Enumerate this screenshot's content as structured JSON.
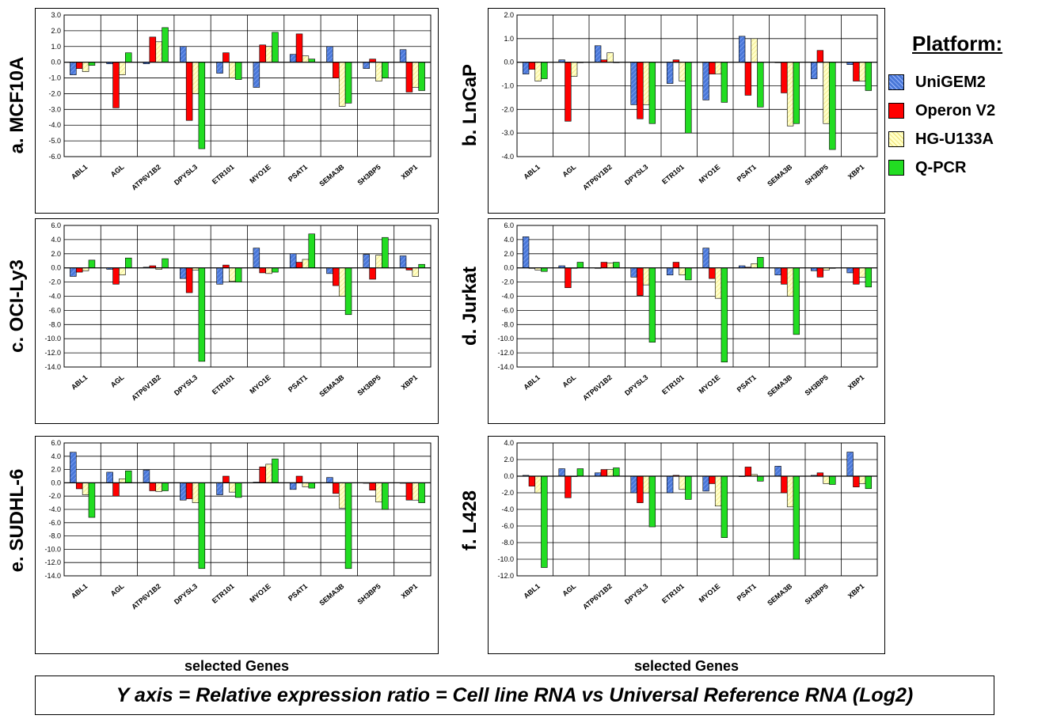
{
  "legend": {
    "title": "Platform:",
    "items": [
      {
        "label": "UniGEM2",
        "color": "#4a78d8",
        "pattern": "hatch"
      },
      {
        "label": "Operon V2",
        "color": "#ff0000",
        "pattern": "solid"
      },
      {
        "label": "HG-U133A",
        "color": "#ffffc0",
        "pattern": "hatch-light"
      },
      {
        "label": "Q-PCR",
        "color": "#22dd22",
        "pattern": "solid"
      }
    ]
  },
  "xaxis_title": "selected Genes",
  "footer": "Y axis = Relative expression ratio = Cell line RNA vs Universal Reference RNA (Log2)",
  "chart_data": [
    {
      "type": "bar",
      "panel_label": "a.  MCF10A",
      "categories": [
        "ABL1",
        "AGL",
        "ATP6V1B2",
        "DPYSL3",
        "ETR101",
        "MYO1E",
        "PSAT1",
        "SEMA3B",
        "SH3BP5",
        "XBP1"
      ],
      "ylim": [
        -6,
        3
      ],
      "yticks": [
        3,
        2,
        1,
        0,
        -1,
        -2,
        -3,
        -4,
        -5,
        -6
      ],
      "series": [
        {
          "name": "UniGEM2",
          "values": [
            -0.8,
            -0.1,
            -0.1,
            1.0,
            -0.7,
            -1.6,
            0.5,
            1.0,
            -0.4,
            0.8
          ]
        },
        {
          "name": "Operon V2",
          "values": [
            -0.4,
            -2.9,
            1.6,
            -3.7,
            0.6,
            1.1,
            1.8,
            -1.0,
            0.2,
            -1.9
          ]
        },
        {
          "name": "HG-U133A",
          "values": [
            -0.6,
            -0.8,
            1.3,
            -2.0,
            -1.0,
            1.0,
            0.4,
            -2.8,
            -1.2,
            -1.6
          ]
        },
        {
          "name": "Q-PCR",
          "values": [
            -0.2,
            0.6,
            2.2,
            -5.5,
            -1.1,
            1.9,
            0.2,
            -2.6,
            -1.0,
            -1.8
          ]
        }
      ]
    },
    {
      "type": "bar",
      "panel_label": "b.  LnCaP",
      "categories": [
        "ABL1",
        "AGL",
        "ATP6V1B2",
        "DPYSL3",
        "ETR101",
        "MYO1E",
        "PSAT1",
        "SEMA3B",
        "SH3BP5",
        "XBP1"
      ],
      "ylim": [
        -4,
        2
      ],
      "yticks": [
        2,
        1,
        0,
        -1,
        -2,
        -3,
        -4
      ],
      "series": [
        {
          "name": "UniGEM2",
          "values": [
            -0.5,
            0.1,
            0.7,
            -1.8,
            -0.9,
            -1.6,
            1.1,
            0.0,
            -0.7,
            -0.1
          ]
        },
        {
          "name": "Operon V2",
          "values": [
            -0.3,
            -2.5,
            0.1,
            -2.4,
            0.1,
            -0.5,
            -1.4,
            -1.3,
            0.5,
            -0.8
          ]
        },
        {
          "name": "HG-U133A",
          "values": [
            -0.8,
            -0.6,
            0.4,
            -1.8,
            -0.8,
            -0.5,
            1.0,
            -2.7,
            -2.6,
            -0.8
          ]
        },
        {
          "name": "Q-PCR",
          "values": [
            -0.7,
            0.0,
            0.0,
            -2.6,
            -3.0,
            -1.7,
            -1.9,
            -2.6,
            -3.7,
            -1.2
          ]
        }
      ]
    },
    {
      "type": "bar",
      "panel_label": "c.  OCI-Ly3",
      "categories": [
        "ABL1",
        "AGL",
        "ATP6V1B2",
        "DPYSL3",
        "ETR101",
        "MYO1E",
        "PSAT1",
        "SEMA3B",
        "SH3BP5",
        "XBP1"
      ],
      "ylim": [
        -14,
        6
      ],
      "yticks": [
        6,
        4,
        2,
        0,
        -2,
        -4,
        -6,
        -8,
        -10,
        -12,
        -14
      ],
      "series": [
        {
          "name": "UniGEM2",
          "values": [
            -1.2,
            -0.2,
            0.1,
            -1.5,
            -2.3,
            2.8,
            2.0,
            -0.8,
            1.9,
            1.7
          ]
        },
        {
          "name": "Operon V2",
          "values": [
            -0.6,
            -2.3,
            0.3,
            -3.5,
            0.4,
            -0.7,
            0.8,
            -2.5,
            -1.6,
            -0.3
          ]
        },
        {
          "name": "HG-U133A",
          "values": [
            -0.4,
            -1.0,
            -0.2,
            -0.3,
            -1.9,
            -0.8,
            1.2,
            -4.0,
            1.8,
            -1.2
          ]
        },
        {
          "name": "Q-PCR",
          "values": [
            1.1,
            1.4,
            1.3,
            -13.2,
            -2.0,
            -0.6,
            4.8,
            -6.6,
            4.3,
            0.5
          ]
        }
      ]
    },
    {
      "type": "bar",
      "panel_label": "d.  Jurkat",
      "categories": [
        "ABL1",
        "AGL",
        "ATP6V1B2",
        "DPYSL3",
        "ETR101",
        "MYO1E",
        "PSAT1",
        "SEMA3B",
        "SH3BP5",
        "XBP1"
      ],
      "ylim": [
        -14,
        6
      ],
      "yticks": [
        6,
        4,
        2,
        0,
        -2,
        -4,
        -6,
        -8,
        -10,
        -12,
        -14
      ],
      "series": [
        {
          "name": "UniGEM2",
          "values": [
            4.4,
            0.3,
            0.0,
            -1.3,
            -1.0,
            2.8,
            0.3,
            -1.0,
            -0.4,
            -0.7
          ]
        },
        {
          "name": "Operon V2",
          "values": [
            0.0,
            -2.8,
            0.8,
            -3.9,
            0.8,
            -1.5,
            0.1,
            -2.3,
            -1.3,
            -2.3
          ]
        },
        {
          "name": "HG-U133A",
          "values": [
            -0.3,
            0.0,
            0.7,
            -2.4,
            -1.0,
            -4.3,
            0.6,
            -4.0,
            -0.3,
            -1.3
          ]
        },
        {
          "name": "Q-PCR",
          "values": [
            -0.5,
            0.8,
            0.8,
            -10.5,
            -1.7,
            -13.3,
            1.5,
            -9.4,
            0.0,
            -2.7
          ]
        }
      ]
    },
    {
      "type": "bar",
      "panel_label": "e.  SUDHL-6",
      "categories": [
        "ABL1",
        "AGL",
        "ATP6V1B2",
        "DPYSL3",
        "ETR101",
        "MYO1E",
        "PSAT1",
        "SEMA3B",
        "SH3BP5",
        "XBP1"
      ],
      "ylim": [
        -14,
        6
      ],
      "yticks": [
        6,
        4,
        2,
        0,
        -2,
        -4,
        -6,
        -8,
        -10,
        -12,
        -14
      ],
      "series": [
        {
          "name": "UniGEM2",
          "values": [
            4.6,
            1.6,
            1.9,
            -2.6,
            -1.8,
            0.1,
            -1.0,
            0.8,
            0.0,
            0.0
          ]
        },
        {
          "name": "Operon V2",
          "values": [
            -0.9,
            -2.0,
            -1.2,
            -2.4,
            1.0,
            2.4,
            1.0,
            -1.6,
            -1.1,
            -2.6
          ]
        },
        {
          "name": "HG-U133A",
          "values": [
            -1.8,
            0.6,
            -1.3,
            -3.0,
            -1.4,
            2.8,
            -0.6,
            -3.8,
            -2.9,
            -2.6
          ]
        },
        {
          "name": "Q-PCR",
          "values": [
            -5.2,
            1.8,
            -1.2,
            -12.9,
            -2.2,
            3.6,
            -0.8,
            -12.9,
            -4.0,
            -3.0
          ]
        }
      ]
    },
    {
      "type": "bar",
      "panel_label": "f.  L428",
      "categories": [
        "ABL1",
        "AGL",
        "ATP6V1B2",
        "DPYSL3",
        "ETR101",
        "MYO1E",
        "PSAT1",
        "SEMA3B",
        "SH3BP5",
        "XBP1"
      ],
      "ylim": [
        -12,
        4
      ],
      "yticks": [
        4,
        2,
        0,
        -2,
        -4,
        -6,
        -8,
        -10,
        -12
      ],
      "series": [
        {
          "name": "UniGEM2",
          "values": [
            0.1,
            0.9,
            0.4,
            -2.0,
            -2.0,
            -1.8,
            0.0,
            1.2,
            0.1,
            2.9
          ]
        },
        {
          "name": "Operon V2",
          "values": [
            -1.2,
            -2.6,
            0.8,
            -3.2,
            0.1,
            -0.9,
            1.1,
            -2.0,
            0.4,
            -1.3
          ]
        },
        {
          "name": "HG-U133A",
          "values": [
            -2.0,
            0.0,
            0.8,
            -2.0,
            -1.6,
            -3.6,
            0.2,
            -3.7,
            -0.9,
            -0.9
          ]
        },
        {
          "name": "Q-PCR",
          "values": [
            -11.0,
            0.9,
            1.0,
            -6.1,
            -2.8,
            -7.4,
            -0.6,
            -10.0,
            -1.0,
            -1.5
          ]
        }
      ]
    }
  ]
}
